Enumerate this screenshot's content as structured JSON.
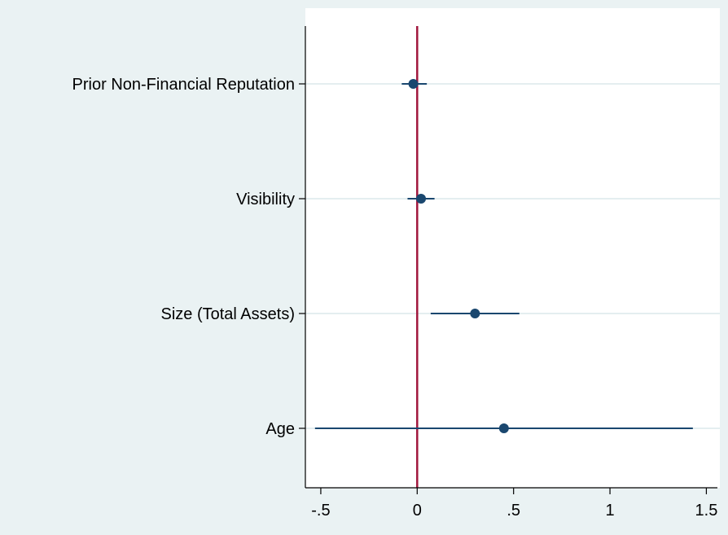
{
  "chart_data": {
    "type": "scatter",
    "subtype": "coefficient-plot",
    "orientation": "horizontal",
    "title": "",
    "xlabel": "",
    "ylabel": "",
    "categories": [
      "Prior Non-Financial Reputation",
      "Visibility",
      "Size (Total Assets)",
      "Age"
    ],
    "estimates": [
      -0.02,
      0.02,
      0.3,
      0.45
    ],
    "ci_lower": [
      -0.08,
      -0.05,
      0.07,
      -0.53
    ],
    "ci_upper": [
      0.05,
      0.09,
      0.53,
      1.43
    ],
    "xlim": [
      -0.58,
      1.57
    ],
    "xticks": [
      -0.5,
      0,
      0.5,
      1,
      1.5
    ],
    "xtick_labels": [
      "-.5",
      "0",
      ".5",
      "1",
      "1.5"
    ],
    "reference_line": {
      "x": 0,
      "color": "#a0163c"
    },
    "grid": true,
    "legend": "none",
    "colors": {
      "background": "#eaf2f3",
      "plot_area": "#ffffff",
      "marker": "#1a476f",
      "ci": "#1a476f",
      "grid": "#e4eef0"
    }
  }
}
